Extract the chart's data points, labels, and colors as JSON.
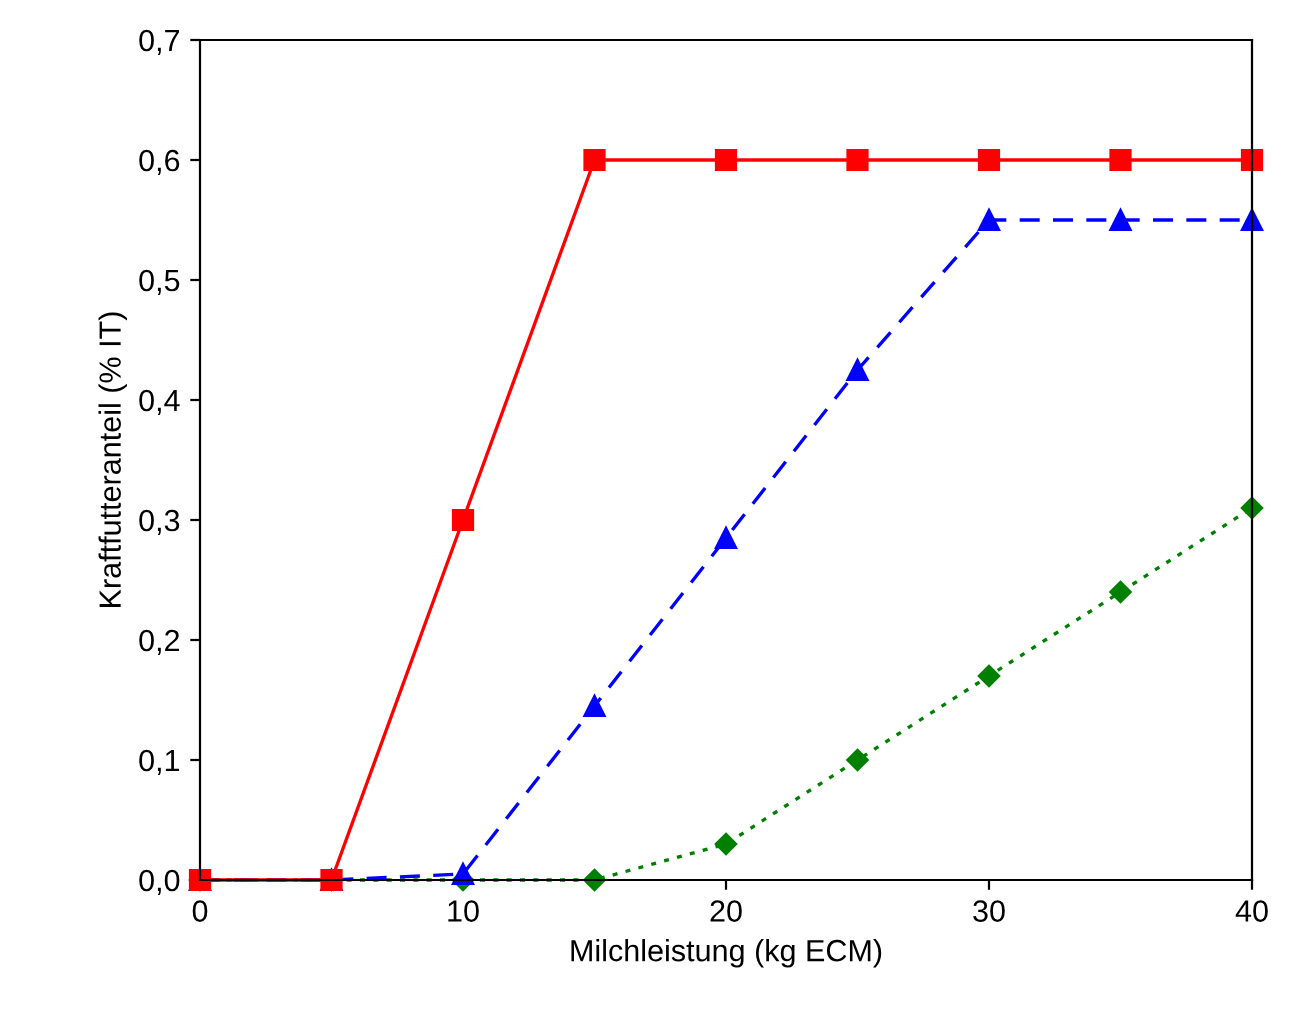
{
  "chart_data": {
    "type": "line",
    "xlabel": "Milchleistung (kg ECM)",
    "ylabel": "Kraftfutteranteil (% IT)",
    "x": [
      0,
      5,
      10,
      15,
      20,
      25,
      30,
      35,
      40
    ],
    "series": [
      {
        "color": "#ff0000",
        "marker": "square",
        "line_style": "solid",
        "values": [
          0,
          0,
          0.3,
          0.6,
          0.6,
          0.6,
          0.6,
          0.6,
          0.6
        ]
      },
      {
        "color": "#0000ff",
        "marker": "triangle",
        "line_style": "dashed",
        "values": [
          0,
          0,
          0.005,
          0.145,
          0.285,
          0.425,
          0.55,
          0.55,
          0.55
        ]
      },
      {
        "color": "#008000",
        "marker": "diamond",
        "line_style": "dotted",
        "values": [
          0,
          0,
          0,
          0,
          0.03,
          0.1,
          0.17,
          0.24,
          0.31
        ]
      }
    ],
    "xlim": [
      0,
      40
    ],
    "xticks": [
      0,
      10,
      20,
      30,
      40
    ],
    "ylim": [
      0,
      0.7
    ],
    "yticks": [
      {
        "value": 0,
        "label": "0,0"
      },
      {
        "value": 0.1,
        "label": "0,1"
      },
      {
        "value": 0.2,
        "label": "0,2"
      },
      {
        "value": 0.3,
        "label": "0,3"
      },
      {
        "value": 0.4,
        "label": "0,4"
      },
      {
        "value": 0.5,
        "label": "0,5"
      },
      {
        "value": 0.6,
        "label": "0,6"
      },
      {
        "value": 0.7,
        "label": "0,7"
      }
    ],
    "grid": false,
    "legend": false
  }
}
